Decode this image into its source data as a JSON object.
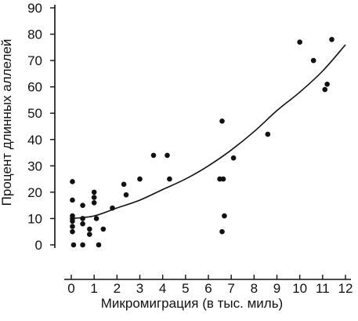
{
  "chart_data": {
    "type": "scatter",
    "xlabel": "Микромиграция (в тыс. миль)",
    "ylabel": "Процент длинных аллелей",
    "xlim": [
      0,
      12
    ],
    "ylim": [
      0,
      90
    ],
    "x_ticks": [
      "0",
      "1",
      "2",
      "3",
      "4",
      "5",
      "6",
      "7",
      "8",
      "9",
      "10",
      "11",
      "12"
    ],
    "y_ticks": [
      "0",
      "10",
      "20",
      "30",
      "40",
      "50",
      "60",
      "70",
      "80",
      "90"
    ],
    "grid": false,
    "legend": "none",
    "points": [
      {
        "x": 0.05,
        "y": 24
      },
      {
        "x": 0.05,
        "y": 17
      },
      {
        "x": 0.05,
        "y": 11
      },
      {
        "x": 0.05,
        "y": 10
      },
      {
        "x": 0.05,
        "y": 9
      },
      {
        "x": 0.05,
        "y": 7
      },
      {
        "x": 0.05,
        "y": 5
      },
      {
        "x": 0.1,
        "y": 0
      },
      {
        "x": 0.5,
        "y": 15
      },
      {
        "x": 0.5,
        "y": 10
      },
      {
        "x": 0.5,
        "y": 8
      },
      {
        "x": 0.5,
        "y": 0
      },
      {
        "x": 0.8,
        "y": 6
      },
      {
        "x": 0.8,
        "y": 4
      },
      {
        "x": 1.0,
        "y": 20
      },
      {
        "x": 1.0,
        "y": 18
      },
      {
        "x": 1.0,
        "y": 16
      },
      {
        "x": 1.1,
        "y": 10
      },
      {
        "x": 1.2,
        "y": 0
      },
      {
        "x": 1.4,
        "y": 6
      },
      {
        "x": 1.8,
        "y": 14
      },
      {
        "x": 2.3,
        "y": 23
      },
      {
        "x": 2.4,
        "y": 19
      },
      {
        "x": 3.0,
        "y": 25
      },
      {
        "x": 3.6,
        "y": 34
      },
      {
        "x": 4.2,
        "y": 34
      },
      {
        "x": 4.3,
        "y": 25
      },
      {
        "x": 6.5,
        "y": 25
      },
      {
        "x": 6.6,
        "y": 47
      },
      {
        "x": 6.65,
        "y": 25
      },
      {
        "x": 6.7,
        "y": 11
      },
      {
        "x": 6.6,
        "y": 5
      },
      {
        "x": 7.1,
        "y": 33
      },
      {
        "x": 8.6,
        "y": 42
      },
      {
        "x": 10.0,
        "y": 77
      },
      {
        "x": 10.6,
        "y": 70
      },
      {
        "x": 11.1,
        "y": 59
      },
      {
        "x": 11.2,
        "y": 61
      },
      {
        "x": 11.4,
        "y": 78
      }
    ],
    "fit_curve": [
      {
        "x": 0,
        "y": 10
      },
      {
        "x": 1,
        "y": 11
      },
      {
        "x": 2,
        "y": 14
      },
      {
        "x": 3,
        "y": 17
      },
      {
        "x": 4,
        "y": 21
      },
      {
        "x": 5,
        "y": 25
      },
      {
        "x": 6,
        "y": 30
      },
      {
        "x": 7,
        "y": 36
      },
      {
        "x": 8,
        "y": 43
      },
      {
        "x": 9,
        "y": 51
      },
      {
        "x": 10,
        "y": 58
      },
      {
        "x": 11,
        "y": 66
      },
      {
        "x": 12,
        "y": 76
      }
    ]
  }
}
